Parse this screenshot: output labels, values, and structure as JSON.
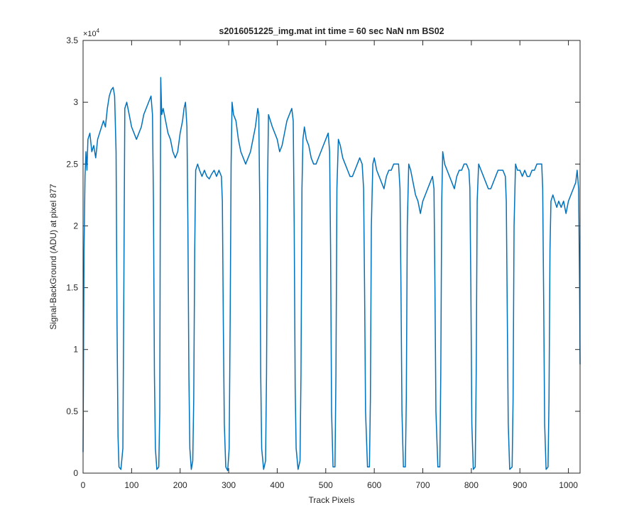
{
  "chart_data": {
    "type": "line",
    "title": "s2016051225_img.mat int time = 60 sec  NaN nm BS02",
    "xlabel": "Track Pixels",
    "ylabel": "Signal-BackGround (ADU) at pixel 877",
    "y_exponent": {
      "base": "×10",
      "power": "4"
    },
    "color": "#0072bd",
    "box": true,
    "xlim": [
      0,
      1024
    ],
    "ylim": [
      0,
      3.5
    ],
    "xticks": [
      0,
      100,
      200,
      300,
      400,
      500,
      600,
      700,
      800,
      900,
      1000
    ],
    "yticks": [
      0,
      0.5,
      1,
      1.5,
      2,
      2.5,
      3,
      3.5
    ],
    "x": [
      0,
      2,
      4,
      6,
      8,
      10,
      14,
      18,
      22,
      26,
      30,
      34,
      38,
      42,
      46,
      50,
      54,
      58,
      62,
      65,
      68,
      70,
      72,
      74,
      78,
      82,
      84,
      86,
      90,
      95,
      100,
      105,
      110,
      115,
      120,
      125,
      130,
      135,
      140,
      143,
      145,
      147,
      149,
      152,
      156,
      158,
      159,
      160,
      162,
      165,
      170,
      175,
      180,
      185,
      190,
      195,
      200,
      205,
      208,
      211,
      214,
      216,
      218,
      220,
      223,
      226,
      228,
      230,
      232,
      236,
      240,
      245,
      250,
      255,
      260,
      265,
      270,
      275,
      280,
      285,
      287,
      289,
      291,
      294,
      298,
      301,
      303,
      305,
      307,
      310,
      315,
      320,
      325,
      330,
      335,
      340,
      345,
      350,
      355,
      360,
      362,
      364,
      366,
      368,
      372,
      376,
      378,
      380,
      382,
      386,
      390,
      395,
      400,
      405,
      410,
      415,
      420,
      425,
      430,
      433,
      435,
      437,
      439,
      443,
      447,
      449,
      451,
      453,
      456,
      460,
      465,
      470,
      475,
      480,
      485,
      490,
      495,
      500,
      505,
      508,
      510,
      512,
      515,
      519,
      521,
      523,
      526,
      530,
      535,
      540,
      545,
      550,
      555,
      560,
      565,
      570,
      575,
      578,
      580,
      582,
      586,
      590,
      592,
      594,
      597,
      600,
      605,
      610,
      615,
      620,
      625,
      630,
      635,
      640,
      645,
      650,
      653,
      655,
      657,
      660,
      664,
      666,
      668,
      671,
      675,
      680,
      685,
      690,
      695,
      700,
      705,
      710,
      715,
      720,
      723,
      725,
      727,
      731,
      735,
      737,
      739,
      741,
      745,
      750,
      755,
      760,
      765,
      770,
      775,
      780,
      785,
      790,
      795,
      797,
      799,
      801,
      804,
      808,
      810,
      812,
      815,
      820,
      825,
      830,
      835,
      840,
      845,
      850,
      855,
      860,
      865,
      870,
      872,
      874,
      876,
      879,
      884,
      886,
      888,
      891,
      895,
      900,
      905,
      910,
      915,
      920,
      925,
      930,
      935,
      940,
      945,
      947,
      949,
      951,
      954,
      958,
      960,
      962,
      964,
      968,
      972,
      976,
      980,
      985,
      990,
      995,
      1000,
      1005,
      1010,
      1015,
      1018,
      1021,
      1023,
      1024
    ],
    "values": [
      0.17,
      1.8,
      2.4,
      2.6,
      2.45,
      2.7,
      2.75,
      2.6,
      2.65,
      2.55,
      2.7,
      2.75,
      2.8,
      2.85,
      2.8,
      2.95,
      3.05,
      3.1,
      3.12,
      3.05,
      2.6,
      1.2,
      0.3,
      0.05,
      0.03,
      0.2,
      1.5,
      2.95,
      3.0,
      2.9,
      2.8,
      2.75,
      2.7,
      2.75,
      2.8,
      2.9,
      2.95,
      3.0,
      3.05,
      2.9,
      2.2,
      0.8,
      0.2,
      0.03,
      0.05,
      0.5,
      2.0,
      3.2,
      2.9,
      2.95,
      2.85,
      2.75,
      2.7,
      2.6,
      2.55,
      2.6,
      2.75,
      2.85,
      2.95,
      3.0,
      2.8,
      2.0,
      0.8,
      0.2,
      0.03,
      0.1,
      0.6,
      1.8,
      2.45,
      2.5,
      2.45,
      2.4,
      2.45,
      2.4,
      2.38,
      2.42,
      2.45,
      2.4,
      2.45,
      2.4,
      2.2,
      1.2,
      0.4,
      0.05,
      0.02,
      0.2,
      1.2,
      2.5,
      3.0,
      2.9,
      2.85,
      2.7,
      2.6,
      2.55,
      2.5,
      2.55,
      2.6,
      2.7,
      2.8,
      2.95,
      2.9,
      2.2,
      0.8,
      0.2,
      0.03,
      0.1,
      0.8,
      2.3,
      2.9,
      2.85,
      2.8,
      2.75,
      2.7,
      2.6,
      2.65,
      2.75,
      2.85,
      2.9,
      2.95,
      2.85,
      2.0,
      0.7,
      0.2,
      0.03,
      0.1,
      0.8,
      2.3,
      2.7,
      2.8,
      2.7,
      2.65,
      2.55,
      2.5,
      2.5,
      2.55,
      2.6,
      2.65,
      2.7,
      2.75,
      2.6,
      1.8,
      0.5,
      0.05,
      0.05,
      0.8,
      2.3,
      2.7,
      2.65,
      2.55,
      2.5,
      2.45,
      2.4,
      2.4,
      2.45,
      2.5,
      2.55,
      2.5,
      2.3,
      1.5,
      0.5,
      0.05,
      0.05,
      0.6,
      2.0,
      2.5,
      2.55,
      2.45,
      2.4,
      2.35,
      2.3,
      2.4,
      2.45,
      2.45,
      2.5,
      2.5,
      2.5,
      2.3,
      1.5,
      0.5,
      0.05,
      0.05,
      0.6,
      2.0,
      2.5,
      2.45,
      2.35,
      2.25,
      2.2,
      2.1,
      2.2,
      2.25,
      2.3,
      2.35,
      2.4,
      2.3,
      1.5,
      0.5,
      0.05,
      0.05,
      0.8,
      2.2,
      2.6,
      2.5,
      2.45,
      2.4,
      2.35,
      2.3,
      2.4,
      2.45,
      2.45,
      2.5,
      2.5,
      2.45,
      2.3,
      1.5,
      0.4,
      0.03,
      0.05,
      0.8,
      2.2,
      2.5,
      2.45,
      2.4,
      2.35,
      2.3,
      2.3,
      2.35,
      2.4,
      2.45,
      2.45,
      2.45,
      2.4,
      2.2,
      1.3,
      0.4,
      0.03,
      0.05,
      0.6,
      2.0,
      2.5,
      2.45,
      2.45,
      2.4,
      2.45,
      2.4,
      2.4,
      2.45,
      2.45,
      2.5,
      2.5,
      2.5,
      2.3,
      1.4,
      0.4,
      0.03,
      0.05,
      0.6,
      1.8,
      2.2,
      2.25,
      2.2,
      2.15,
      2.2,
      2.15,
      2.2,
      2.1,
      2.2,
      2.25,
      2.3,
      2.35,
      2.45,
      2.3,
      1.5,
      0.88
    ]
  }
}
